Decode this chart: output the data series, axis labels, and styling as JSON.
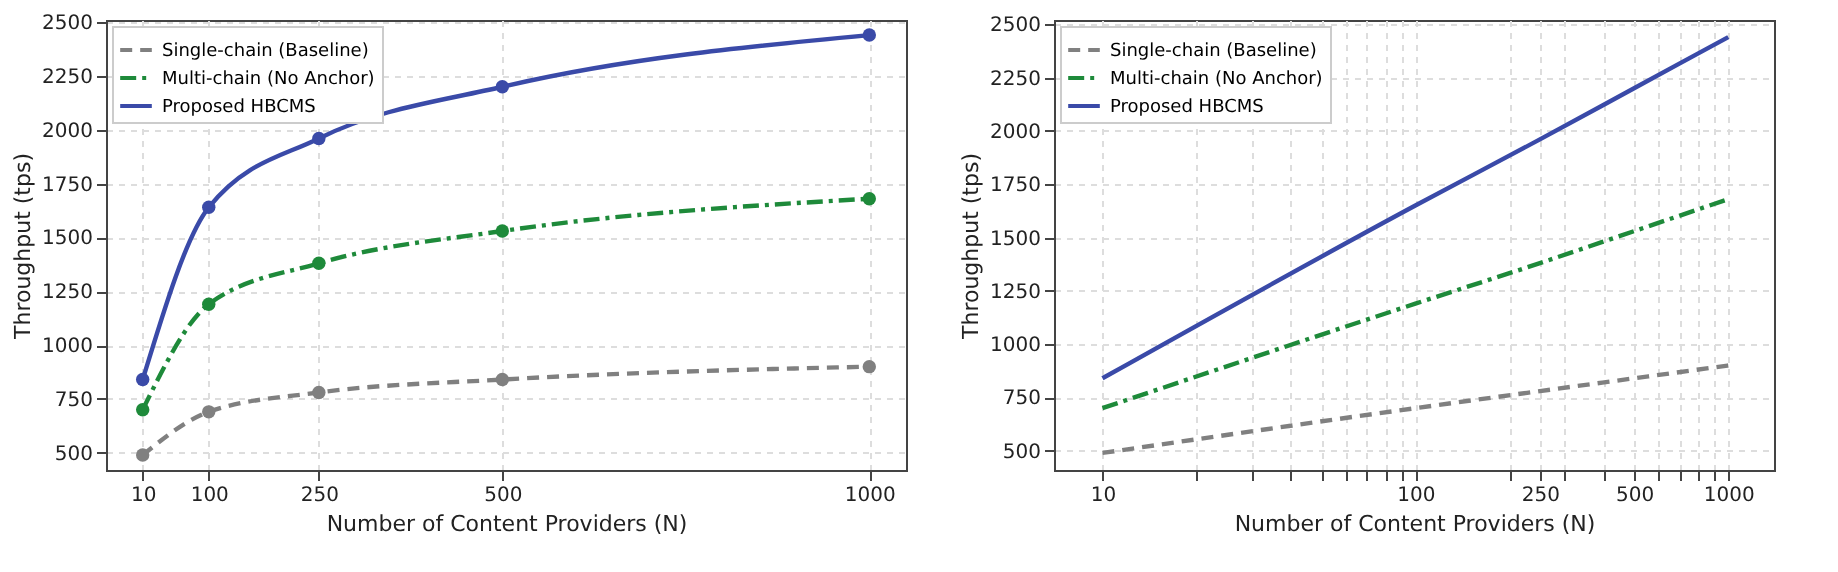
{
  "chart_data": [
    {
      "type": "line",
      "xlabel": "Number of Content Providers (N)",
      "ylabel": "Throughput (tps)",
      "x": [
        10,
        100,
        250,
        500,
        1000
      ],
      "xlim": [
        -40,
        1050
      ],
      "xticks": [
        10,
        100,
        250,
        500,
        1000
      ],
      "ylim": [
        420,
        2510
      ],
      "yticks": [
        500,
        750,
        1000,
        1250,
        1500,
        1750,
        2000,
        2250,
        2500
      ],
      "grid": true,
      "legend": "top left",
      "marker": "circle",
      "series": [
        {
          "name": "Single-chain (Baseline)",
          "color": "#808080",
          "line_style": "dashed",
          "values": [
            490,
            690,
            780,
            840,
            900
          ]
        },
        {
          "name": "Multi-chain (No Anchor)",
          "color": "#1e8a3a",
          "line_style": "dashdot",
          "values": [
            700,
            1190,
            1380,
            1530,
            1680
          ]
        },
        {
          "name": "Proposed HBCMS",
          "color": "#3a4aa8",
          "line_style": "solid",
          "values": [
            840,
            1640,
            1960,
            2200,
            2440
          ]
        }
      ]
    },
    {
      "type": "line",
      "xlabel": "Number of Content Providers (N)",
      "ylabel": "Throughput (tps)",
      "x": [
        10,
        100,
        250,
        500,
        1000
      ],
      "log": "x",
      "xlim": [
        7,
        1400
      ],
      "xticks": [
        10,
        {
          "value": 20,
          "label": null
        },
        {
          "value": 30,
          "label": null
        },
        {
          "value": 40,
          "label": null
        },
        {
          "value": 50,
          "label": null
        },
        {
          "value": 60,
          "label": null
        },
        {
          "value": 70,
          "label": null
        },
        {
          "value": 80,
          "label": null
        },
        {
          "value": 90,
          "label": null
        },
        100,
        {
          "value": 200,
          "label": null
        },
        250,
        {
          "value": 300,
          "label": null
        },
        {
          "value": 400,
          "label": null
        },
        500,
        {
          "value": 600,
          "label": null
        },
        {
          "value": 700,
          "label": null
        },
        {
          "value": 800,
          "label": null
        },
        {
          "value": 900,
          "label": null
        },
        1000
      ],
      "ylim": [
        410,
        2520
      ],
      "yticks": [
        500,
        750,
        1000,
        1250,
        1500,
        1750,
        2000,
        2250,
        2500
      ],
      "grid": true,
      "legend": "top left",
      "marker": "none",
      "series": [
        {
          "name": "Single-chain (Baseline)",
          "color": "#808080",
          "line_style": "dashed",
          "values": [
            490,
            700,
            780,
            840,
            900
          ]
        },
        {
          "name": "Multi-chain (No Anchor)",
          "color": "#1e8a3a",
          "line_style": "dashdot",
          "values": [
            700,
            1190,
            1380,
            1530,
            1680
          ]
        },
        {
          "name": "Proposed HBCMS",
          "color": "#3a4aa8",
          "line_style": "solid",
          "values": [
            840,
            1650,
            1960,
            2200,
            2440
          ]
        }
      ]
    }
  ]
}
